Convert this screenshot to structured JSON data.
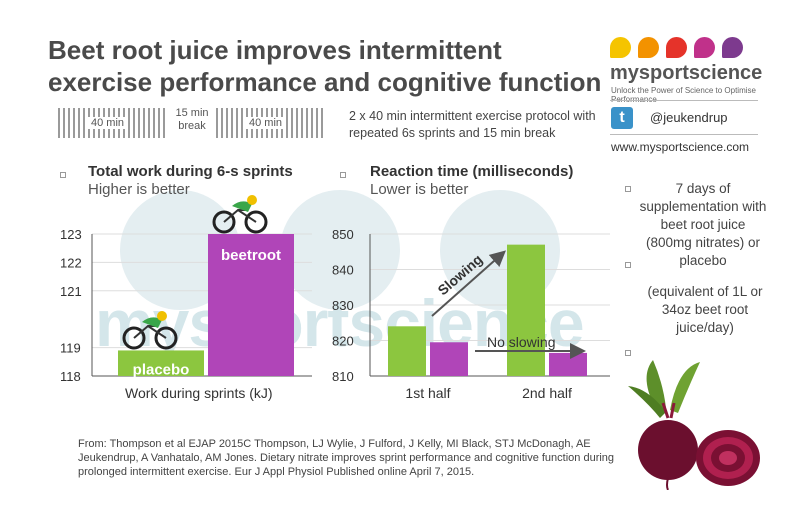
{
  "title": "Beet root juice improves intermittent exercise performance and cognitive function",
  "protocol": {
    "block1_label": "40 min",
    "break_label": "15 min break",
    "block2_label": "40 min",
    "description": "2 x 40 min intermittent exercise protocol with repeated 6s sprints and 15 min break"
  },
  "brand": {
    "name": "mysportscience",
    "tagline": "Unlock the Power of Science to Optimise Performance",
    "twitter_handle": "@jeukendrup",
    "website": "www.mysportscience.com",
    "watermark": "mysportscience",
    "colors": [
      "#f5c400",
      "#f39200",
      "#e5332a",
      "#c0318a",
      "#7d3a8e"
    ]
  },
  "colors": {
    "placebo": "#8cc63f",
    "beetroot": "#b045b8",
    "text": "#333333"
  },
  "side_note": {
    "line1": "7 days of supplementation with beet root juice (800mg nitrates) or placebo",
    "line2": "(equivalent of 1L or 34oz beet root juice/day)"
  },
  "citation": "From: Thompson et al EJAP 2015C Thompson, LJ Wylie, J Fulford, J Kelly, MI Black, STJ McDonagh, AE Jeukendrup, A Vanhatalo, AM Jones. Dietary nitrate improves sprint performance and cognitive function during prolonged intermittent exercise. Eur J Appl Physiol Published online April 7, 2015.",
  "chart_data": [
    {
      "type": "bar",
      "title": "Total work during 6-s sprints",
      "subtitle": "Higher is better",
      "xlabel": "Work during sprints (kJ)",
      "categories": [
        "placebo",
        "beetroot"
      ],
      "values": [
        118.9,
        123
      ],
      "bar_labels": [
        "placebo",
        "beetroot"
      ],
      "yticks": [
        "118",
        "119",
        "121",
        "122",
        "123"
      ],
      "ylim": [
        118,
        123
      ]
    },
    {
      "type": "bar",
      "title": "Reaction time (milliseconds)",
      "subtitle": "Lower is better",
      "categories": [
        "1st half",
        "2nd half"
      ],
      "series": [
        {
          "name": "placebo",
          "values": [
            824,
            847
          ]
        },
        {
          "name": "beetroot",
          "values": [
            819.5,
            816.5
          ]
        }
      ],
      "yticks": [
        "810",
        "820",
        "830",
        "840",
        "850"
      ],
      "ylim": [
        810,
        850
      ],
      "annotations": [
        "Slowing",
        "No slowing"
      ]
    }
  ]
}
